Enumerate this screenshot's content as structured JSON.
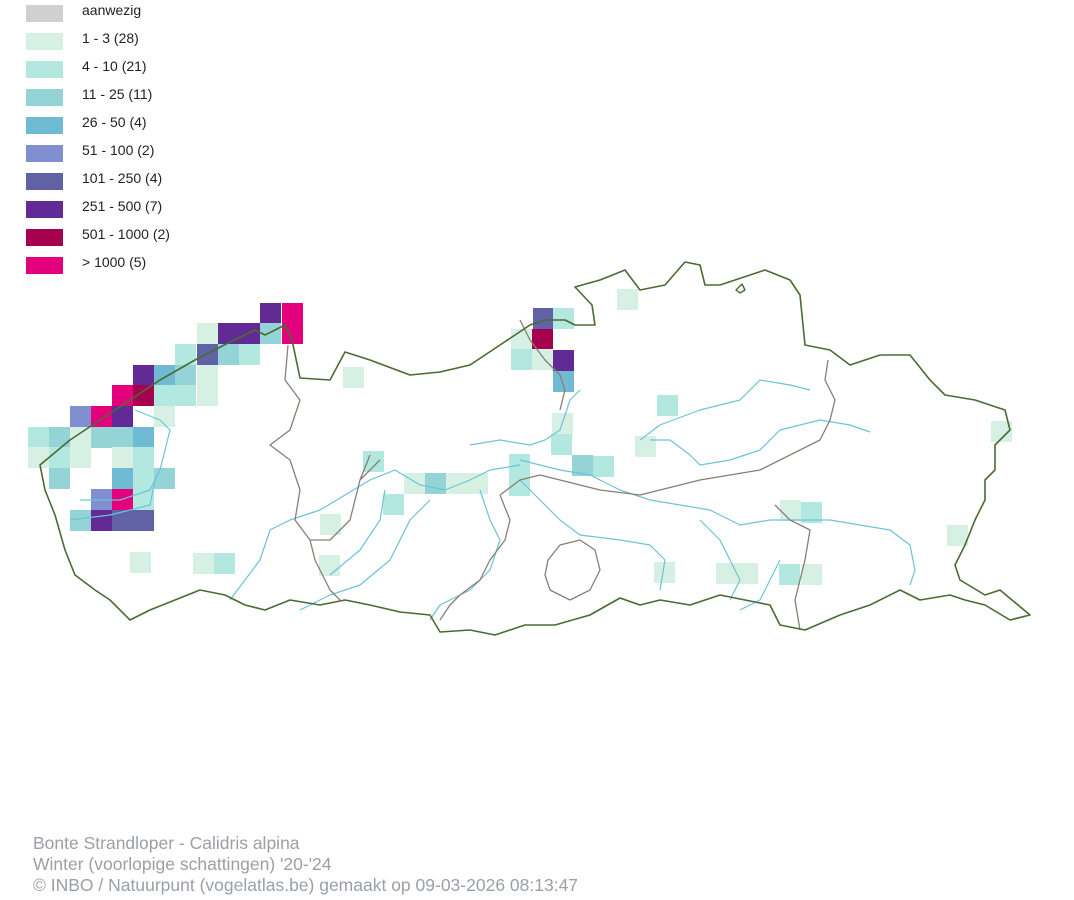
{
  "legend": {
    "items": [
      {
        "label": "aanwezig",
        "color": "#d0d0d0"
      },
      {
        "label": "1 - 3 (28)",
        "color": "#d6f0e3"
      },
      {
        "label": "4 - 10 (21)",
        "color": "#b3e8e0"
      },
      {
        "label": "11 - 25 (11)",
        "color": "#94d3d6"
      },
      {
        "label": "26 - 50 (4)",
        "color": "#6fbbd3"
      },
      {
        "label": "51 - 100 (2)",
        "color": "#7f8fd0"
      },
      {
        "label": "101 - 250 (4)",
        "color": "#6162a6"
      },
      {
        "label": "251 - 500 (7)",
        "color": "#612a95"
      },
      {
        "label": "501 - 1000 (2)",
        "color": "#a6004f"
      },
      {
        "label": "> 1000 (5)",
        "color": "#e4007c"
      }
    ]
  },
  "map": {
    "border_color": "#4a6b33",
    "province_border_color": "#8b7d75",
    "river_color": "#6cc3d9"
  },
  "footer": {
    "species": "Bonte Strandloper - Calidris alpina",
    "period": "Winter (voorlopige schattingen) '20-'24",
    "credit": "© INBO / Natuurpunt (vogelatlas.be) gemaakt op 09-03-2026 08:13:47"
  }
}
